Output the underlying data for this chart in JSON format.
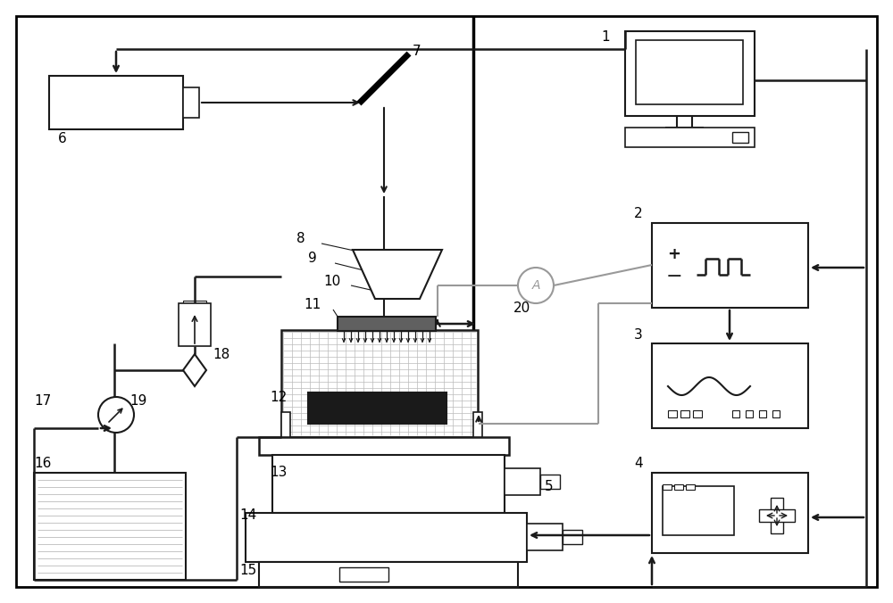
{
  "bg_color": "#ffffff",
  "line_color": "#1a1a1a",
  "gray_line": "#999999",
  "figure_size": [
    10.0,
    6.76
  ],
  "dpi": 100
}
